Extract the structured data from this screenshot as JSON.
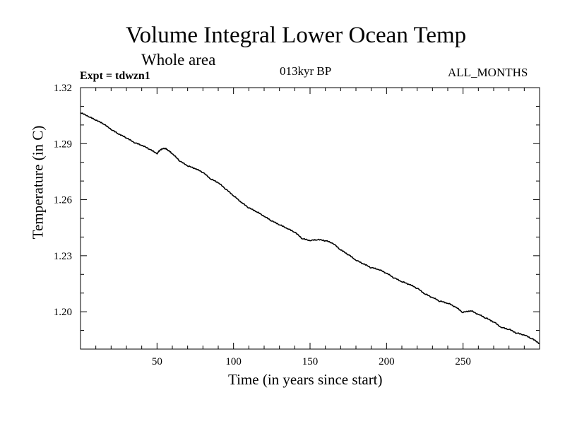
{
  "chart_data": {
    "type": "line",
    "title": "Volume Integral Lower Ocean Temp",
    "subtitle": "Whole area",
    "experiment": "Expt = tdwzn1",
    "period": "013kyr BP",
    "months": "ALL_MONTHS",
    "xlabel": "Time (in years since start)",
    "ylabel": "Temperature (in C)",
    "xlim": [
      0,
      300
    ],
    "ylim": [
      1.18,
      1.32
    ],
    "xticks": [
      50,
      100,
      150,
      200,
      250
    ],
    "xtick_labels": [
      "50",
      "100",
      "150",
      "200",
      "250"
    ],
    "yticks": [
      1.2,
      1.23,
      1.26,
      1.29,
      1.32
    ],
    "ytick_labels": [
      "1.20",
      "1.23",
      "1.26",
      "1.29",
      "1.32"
    ],
    "series": [
      {
        "name": "Lower Ocean Temp",
        "x": [
          0,
          5,
          10,
          15,
          20,
          25,
          30,
          35,
          40,
          45,
          50,
          52,
          55,
          57,
          60,
          65,
          70,
          75,
          80,
          85,
          90,
          95,
          100,
          105,
          110,
          115,
          120,
          125,
          130,
          135,
          140,
          145,
          150,
          155,
          160,
          165,
          170,
          175,
          180,
          185,
          190,
          195,
          200,
          205,
          210,
          215,
          220,
          225,
          230,
          235,
          240,
          245,
          250,
          255,
          260,
          265,
          270,
          275,
          280,
          285,
          290,
          295,
          300
        ],
        "values": [
          1.3065,
          1.3045,
          1.3025,
          1.3005,
          1.2975,
          1.295,
          1.293,
          1.2905,
          1.289,
          1.287,
          1.2845,
          1.2865,
          1.2875,
          1.2865,
          1.2845,
          1.2805,
          1.278,
          1.2765,
          1.2745,
          1.271,
          1.269,
          1.2655,
          1.262,
          1.2585,
          1.2555,
          1.2535,
          1.251,
          1.2485,
          1.2465,
          1.2445,
          1.2425,
          1.239,
          1.238,
          1.2385,
          1.238,
          1.2365,
          1.233,
          1.2305,
          1.2275,
          1.2255,
          1.2235,
          1.2225,
          1.2205,
          1.218,
          1.216,
          1.2145,
          1.2125,
          1.2095,
          1.2075,
          1.2055,
          1.2045,
          1.2025,
          1.1995,
          1.2005,
          1.1985,
          1.1965,
          1.1945,
          1.1915,
          1.1905,
          1.1885,
          1.1875,
          1.1855,
          1.183
        ]
      }
    ]
  }
}
